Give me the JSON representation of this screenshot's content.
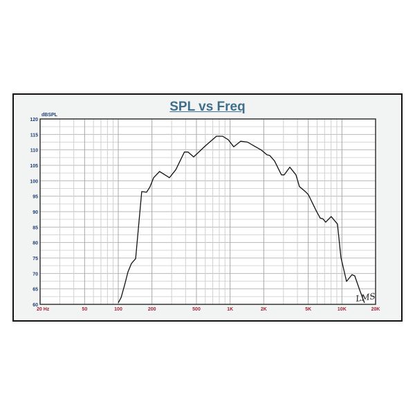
{
  "chart_data": {
    "type": "line",
    "title": "SPL vs Freq",
    "ylabel": "dBSPL",
    "xlabel": "",
    "x_scale": "log",
    "xlim": [
      20,
      20000
    ],
    "ylim": [
      60,
      120
    ],
    "grid": true,
    "x_tick_labels": [
      {
        "value": 20,
        "label": "20  Hz"
      },
      {
        "value": 50,
        "label": "50"
      },
      {
        "value": 100,
        "label": "100"
      },
      {
        "value": 200,
        "label": "200"
      },
      {
        "value": 500,
        "label": "500"
      },
      {
        "value": 1000,
        "label": "1K"
      },
      {
        "value": 2000,
        "label": "2K"
      },
      {
        "value": 5000,
        "label": "5K"
      },
      {
        "value": 10000,
        "label": "10K"
      },
      {
        "value": 20000,
        "label": "20K"
      }
    ],
    "y_ticks": [
      60,
      65,
      70,
      75,
      80,
      85,
      90,
      95,
      100,
      105,
      110,
      115,
      120
    ],
    "series": [
      {
        "color": "#111111",
        "points": [
          [
            100,
            60.5
          ],
          [
            106,
            62.2
          ],
          [
            114,
            66.3
          ],
          [
            122,
            70.5
          ],
          [
            131,
            73.2
          ],
          [
            143,
            74.8
          ],
          [
            162,
            96.5
          ],
          [
            179,
            96.3
          ],
          [
            192,
            98
          ],
          [
            207,
            101
          ],
          [
            234,
            103
          ],
          [
            287,
            101
          ],
          [
            327,
            103.6
          ],
          [
            390,
            109.3
          ],
          [
            420,
            109.3
          ],
          [
            472,
            107.7
          ],
          [
            601,
            111.3
          ],
          [
            755,
            114.4
          ],
          [
            858,
            114.4
          ],
          [
            962,
            113.3
          ],
          [
            1078,
            111.0
          ],
          [
            1242,
            112.8
          ],
          [
            1432,
            112.5
          ],
          [
            1652,
            111.2
          ],
          [
            1906,
            109.9
          ],
          [
            2134,
            108.4
          ],
          [
            2260,
            108.2
          ],
          [
            2496,
            106.4
          ],
          [
            2878,
            101.9
          ],
          [
            3048,
            101.9
          ],
          [
            3418,
            104.4
          ],
          [
            3884,
            101.9
          ],
          [
            4170,
            98.1
          ],
          [
            4740,
            96.4
          ],
          [
            5012,
            95.5
          ],
          [
            5870,
            90.4
          ],
          [
            6396,
            87.9
          ],
          [
            6760,
            87.7
          ],
          [
            7160,
            86.6
          ],
          [
            8020,
            88.4
          ],
          [
            9120,
            86.0
          ],
          [
            9794,
            75.2
          ],
          [
            10990,
            67.4
          ],
          [
            12300,
            69.6
          ],
          [
            13030,
            69.2
          ],
          [
            14400,
            64.7
          ],
          [
            15900,
            60.5
          ]
        ]
      }
    ],
    "watermark": "LMS",
    "colors": {
      "title": "#3f6f8c",
      "y_labels": "#1f3f73",
      "x_labels": "#a0233a",
      "background": "#f2f3f3"
    }
  }
}
